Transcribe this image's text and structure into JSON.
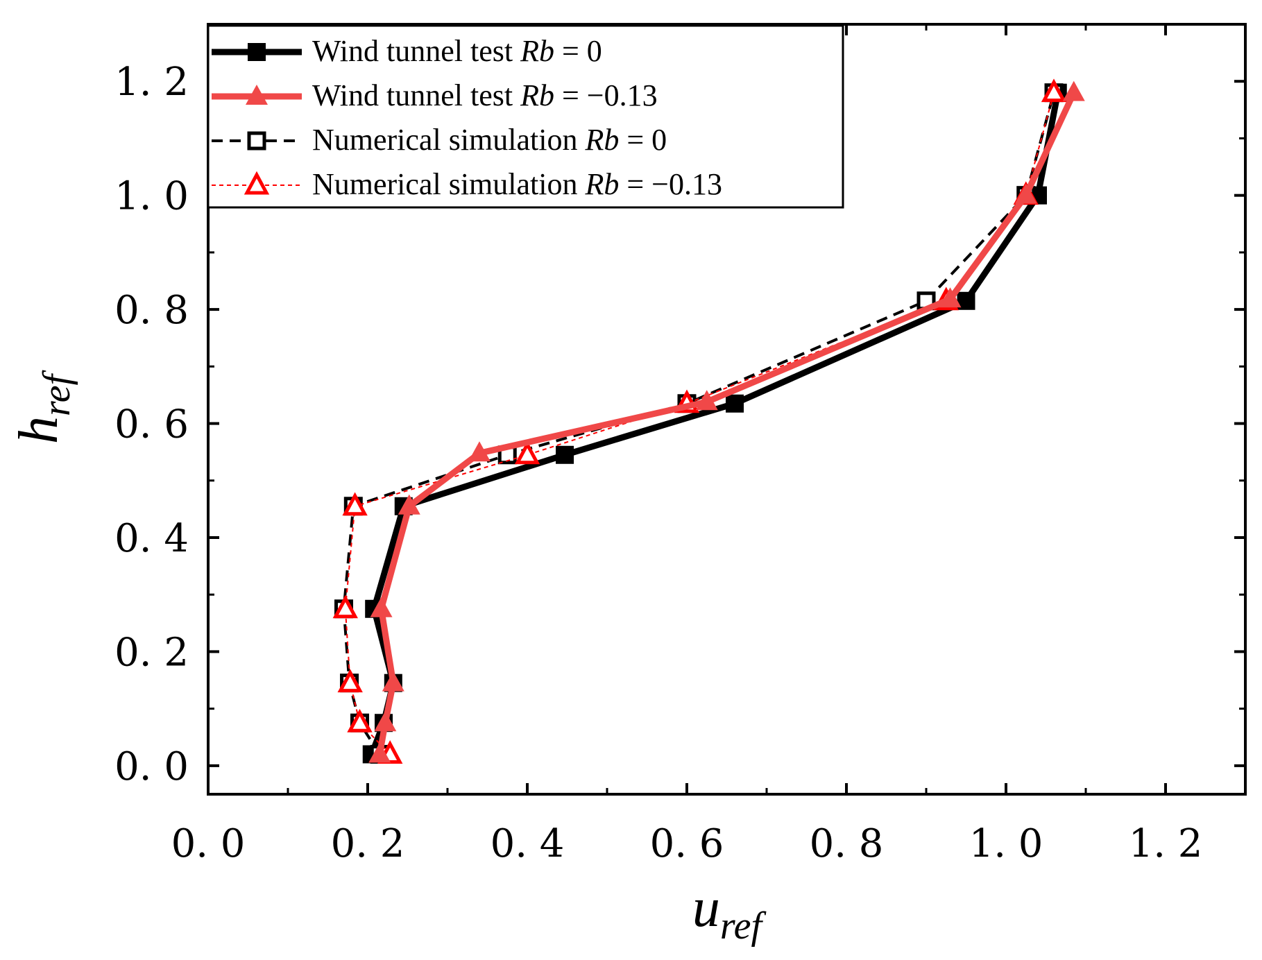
{
  "chart_data": {
    "type": "line",
    "xlabel": {
      "main": "u",
      "sub": "ref"
    },
    "ylabel": {
      "main": "h",
      "sub": "ref"
    },
    "xlim": [
      0,
      1.3
    ],
    "ylim": [
      -0.05,
      1.3
    ],
    "xticks": [
      0.0,
      0.2,
      0.4,
      0.6,
      0.8,
      1.0,
      1.2
    ],
    "yticks": [
      0.0,
      0.2,
      0.4,
      0.6,
      0.8,
      1.0,
      1.2
    ],
    "xtick_labels": [
      "0. 0",
      "0. 2",
      "0. 4",
      "0. 6",
      "0. 8",
      "1. 0",
      "1. 2"
    ],
    "ytick_labels": [
      "0. 0",
      "0. 2",
      "0. 4",
      "0. 6",
      "0. 8",
      "1. 0",
      "1. 2"
    ],
    "legend_position": "top-left",
    "series": [
      {
        "name": "Wind tunnel test Rb = 0",
        "label_prefix": "Wind tunnel test ",
        "label_italic": "Rb",
        "label_suffix": " = 0",
        "color": "#000000",
        "line_style": "solid",
        "marker": "filled-square",
        "x": [
          0.205,
          0.22,
          0.232,
          0.208,
          0.245,
          0.447,
          0.66,
          0.95,
          1.04,
          1.065
        ],
        "y": [
          0.02,
          0.075,
          0.145,
          0.275,
          0.455,
          0.545,
          0.635,
          0.815,
          1.0,
          1.18
        ]
      },
      {
        "name": "Wind tunnel test Rb = −0.13",
        "label_prefix": "Wind tunnel test ",
        "label_italic": "Rb",
        "label_suffix": " = −0.13",
        "color": "#f04848",
        "line_style": "solid",
        "marker": "filled-triangle",
        "x": [
          0.215,
          0.222,
          0.232,
          0.217,
          0.252,
          0.34,
          0.625,
          0.93,
          1.025,
          1.085
        ],
        "y": [
          0.02,
          0.075,
          0.145,
          0.275,
          0.455,
          0.548,
          0.638,
          0.818,
          1.0,
          1.18
        ]
      },
      {
        "name": "Numerical simulation Rb = 0",
        "label_prefix": "Numerical simulation ",
        "label_italic": "Rb",
        "label_suffix": " = 0",
        "color": "#000000",
        "line_style": "dashed",
        "marker": "open-square",
        "x": [
          0.215,
          0.19,
          0.177,
          0.17,
          0.182,
          0.375,
          0.6,
          0.9,
          1.025,
          1.06
        ],
        "y": [
          0.02,
          0.075,
          0.145,
          0.275,
          0.455,
          0.545,
          0.635,
          0.815,
          1.0,
          1.18
        ]
      },
      {
        "name": "Numerical simulation Rb = −0.13",
        "label_prefix": "Numerical simulation ",
        "label_italic": "Rb",
        "label_suffix": " = −0.13",
        "color": "#ff0000",
        "line_style": "dotted",
        "marker": "open-triangle",
        "x": [
          0.228,
          0.19,
          0.178,
          0.172,
          0.184,
          0.4,
          0.6,
          0.925,
          1.025,
          1.06
        ],
        "y": [
          0.02,
          0.075,
          0.145,
          0.275,
          0.455,
          0.545,
          0.635,
          0.815,
          1.0,
          1.18
        ]
      }
    ]
  }
}
